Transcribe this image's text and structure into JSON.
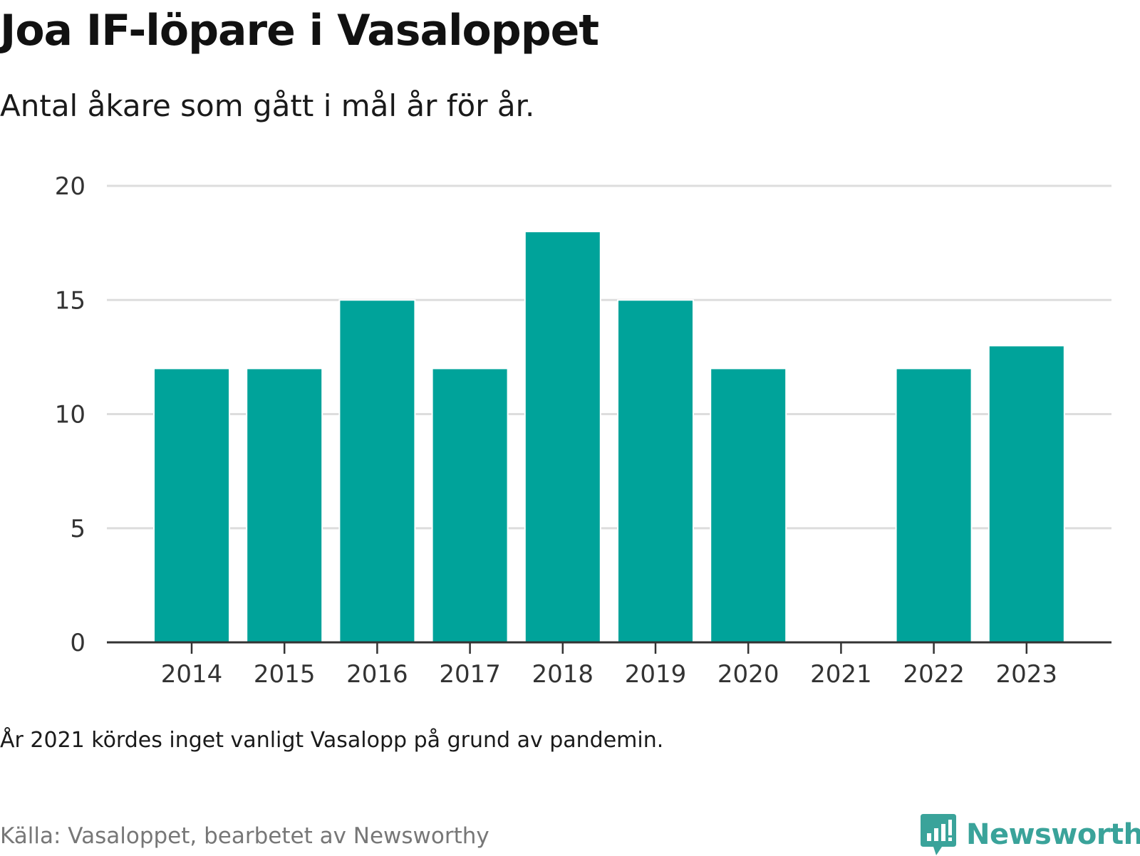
{
  "title": "Joa IF-löpare i Vasaloppet",
  "subtitle": "Antal åkare som gått i mål år för år.",
  "note": "År 2021 kördes inget vanligt Vasalopp på grund av pandemin.",
  "source": "Källa: Vasaloppet, bearbetet av Newsworthy",
  "brand": {
    "name": "Newsworthy",
    "icon": "newsworthy-logo-icon",
    "color": "#3aa39a"
  },
  "chart_data": {
    "type": "bar",
    "categories": [
      "2014",
      "2015",
      "2016",
      "2017",
      "2018",
      "2019",
      "2020",
      "2021",
      "2022",
      "2023"
    ],
    "values": [
      12,
      12,
      15,
      12,
      18,
      15,
      12,
      null,
      12,
      13
    ],
    "ylim": [
      0,
      20
    ],
    "yticks": [
      0,
      5,
      10,
      15,
      20
    ],
    "bar_color": "#00a39a",
    "grid": true,
    "gridline_color": "#dddddd",
    "legend": "none"
  }
}
